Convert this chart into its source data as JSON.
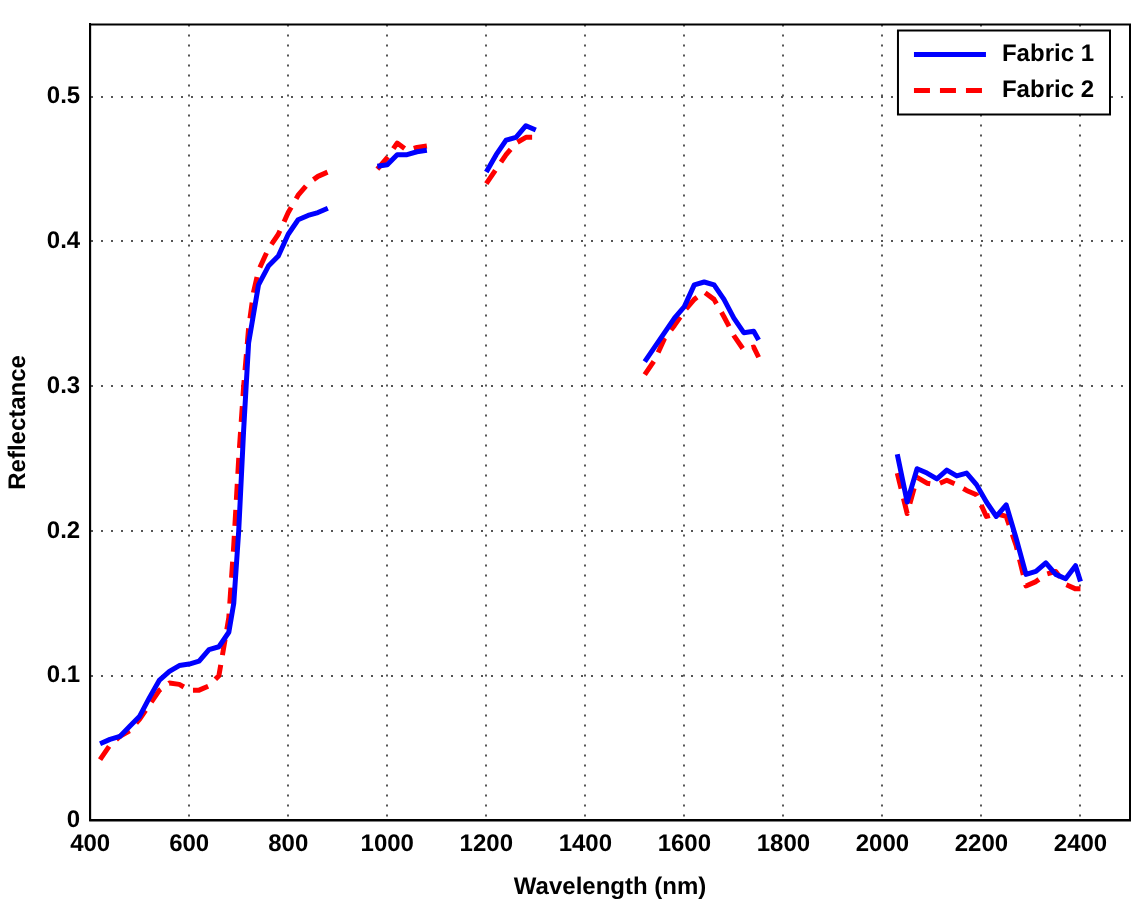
{
  "chart_data": {
    "type": "line",
    "xlabel": "Wavelength (nm)",
    "ylabel": "Reflectance",
    "x": [
      420,
      440,
      460,
      480,
      500,
      520,
      540,
      560,
      580,
      600,
      620,
      640,
      660,
      680,
      690,
      700,
      710,
      720,
      730,
      740,
      760,
      780,
      800,
      820,
      840,
      860,
      880,
      920,
      980,
      1000,
      1020,
      1040,
      1060,
      1080,
      1140,
      1200,
      1220,
      1240,
      1260,
      1280,
      1300,
      1400,
      1520,
      1540,
      1560,
      1580,
      1600,
      1620,
      1640,
      1660,
      1680,
      1700,
      1720,
      1740,
      1750,
      1900,
      2030,
      2050,
      2070,
      2090,
      2110,
      2130,
      2150,
      2170,
      2190,
      2210,
      2230,
      2250,
      2270,
      2290,
      2310,
      2330,
      2350,
      2370,
      2390,
      2400
    ],
    "series": [
      {
        "name": "Fabric 1",
        "color": "#0000ff",
        "line_style": "solid",
        "values": [
          0.053,
          0.056,
          0.058,
          0.065,
          0.072,
          0.085,
          0.097,
          0.103,
          0.107,
          0.108,
          0.11,
          0.118,
          0.12,
          0.13,
          0.15,
          0.2,
          0.27,
          0.33,
          0.35,
          0.37,
          0.383,
          0.39,
          0.405,
          0.415,
          0.418,
          0.42,
          0.423,
          null,
          0.452,
          0.453,
          0.46,
          0.46,
          0.462,
          0.463,
          null,
          0.448,
          0.46,
          0.47,
          0.472,
          0.48,
          0.477,
          null,
          0.317,
          0.327,
          0.337,
          0.347,
          0.355,
          0.37,
          0.372,
          0.37,
          0.36,
          0.347,
          0.337,
          0.338,
          0.332,
          null,
          0.253,
          0.22,
          0.243,
          0.24,
          0.236,
          0.242,
          0.238,
          0.24,
          0.232,
          0.22,
          0.21,
          0.218,
          0.195,
          0.17,
          0.172,
          0.178,
          0.17,
          0.167,
          0.176,
          0.165
        ]
      },
      {
        "name": "Fabric 2",
        "color": "#ff0000",
        "line_style": "dashed",
        "values": [
          0.042,
          0.052,
          0.058,
          0.062,
          0.07,
          0.08,
          0.09,
          0.095,
          0.094,
          0.09,
          0.09,
          0.093,
          0.1,
          0.14,
          0.19,
          0.25,
          0.3,
          0.34,
          0.365,
          0.38,
          0.395,
          0.405,
          0.42,
          0.432,
          0.44,
          0.445,
          0.448,
          null,
          0.45,
          0.458,
          0.468,
          0.463,
          0.465,
          0.466,
          null,
          0.44,
          0.45,
          0.46,
          0.468,
          0.472,
          0.472,
          null,
          0.308,
          0.318,
          0.333,
          0.342,
          0.352,
          0.36,
          0.365,
          0.36,
          0.348,
          0.335,
          0.325,
          0.327,
          0.32,
          null,
          0.24,
          0.212,
          0.237,
          0.233,
          0.232,
          0.235,
          0.232,
          0.228,
          0.225,
          0.21,
          0.212,
          0.21,
          0.19,
          0.162,
          0.165,
          0.17,
          0.172,
          0.163,
          0.16,
          0.16
        ]
      }
    ],
    "xlim": [
      400,
      2500
    ],
    "xticks": [
      400,
      600,
      800,
      1000,
      1200,
      1400,
      1600,
      1800,
      2000,
      2200,
      2400
    ],
    "ylim": [
      0,
      0.55
    ],
    "yticks": [
      0,
      0.1,
      0.2,
      0.3,
      0.4,
      0.5
    ],
    "grid": true,
    "legend": "top right",
    "marker": "none"
  }
}
